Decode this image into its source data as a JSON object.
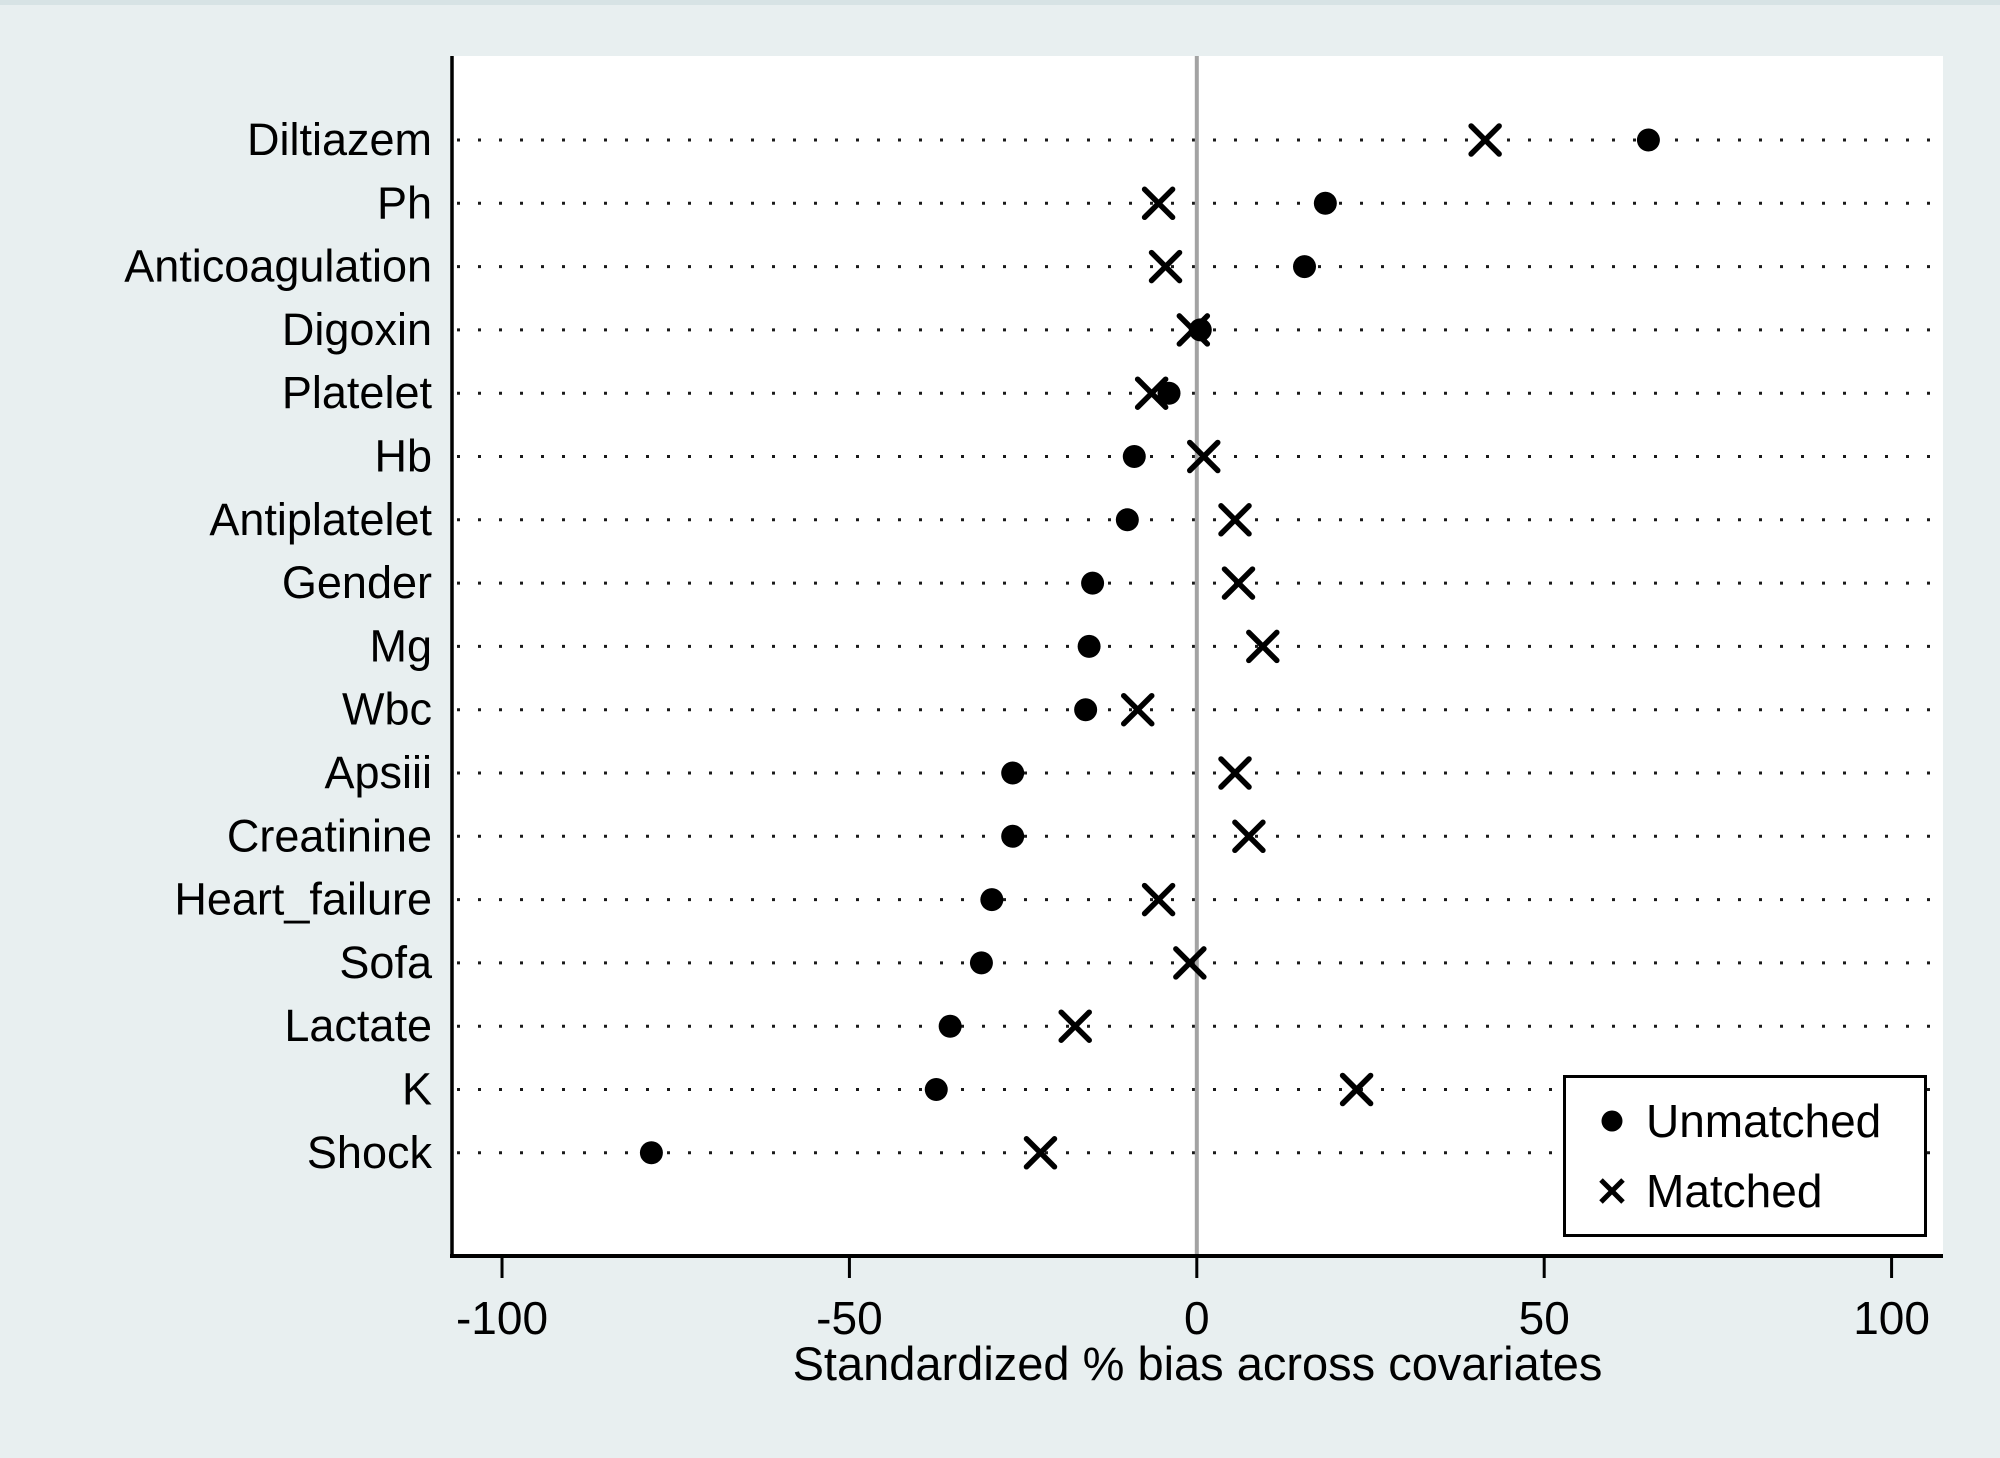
{
  "page_bg": "#e8eff0",
  "top_strip_color": "#d7e3e5",
  "plot_bg": "#ffffff",
  "axis_color": "#000000",
  "marker_color": "#000000",
  "zero_line_color": "#a3a3a3",
  "grid_dot_color": "#1a1a1a",
  "chart_data": {
    "type": "scatter",
    "title": "",
    "xlabel": "Standardized % bias across covariates",
    "ylabel": "",
    "categories": [
      "Diltiazem",
      "Ph",
      "Anticoagulation",
      "Digoxin",
      "Platelet",
      "Hb",
      "Antiplatelet",
      "Gender",
      "Mg",
      "Wbc",
      "Apsiii",
      "Creatinine",
      "Heart_failure",
      "Sofa",
      "Lactate",
      "K",
      "Shock"
    ],
    "series": [
      {
        "name": "Unmatched",
        "marker": "circle",
        "values": [
          65,
          18.5,
          15.5,
          0.5,
          -4,
          -9,
          -10,
          -15,
          -15.5,
          -16,
          -26.5,
          -26.5,
          -29.5,
          -31,
          -35.5,
          -37.5,
          -78.5
        ]
      },
      {
        "name": "Matched",
        "marker": "x",
        "values": [
          41.5,
          -5.5,
          -4.5,
          -0.5,
          -6.5,
          1,
          5.5,
          6,
          9.5,
          -8.5,
          5.5,
          7.5,
          -5.5,
          -1,
          -17.5,
          23,
          -22.5
        ]
      }
    ],
    "x_ticks": [
      "-100",
      "-50",
      "0",
      "50",
      "100"
    ],
    "x_tick_values": [
      -100,
      -50,
      0,
      50,
      100
    ],
    "xlim": [
      -107.2,
      107.4
    ],
    "zero_line": true,
    "grid": "horizontal-dotted",
    "legend_position": "bottom-right"
  }
}
